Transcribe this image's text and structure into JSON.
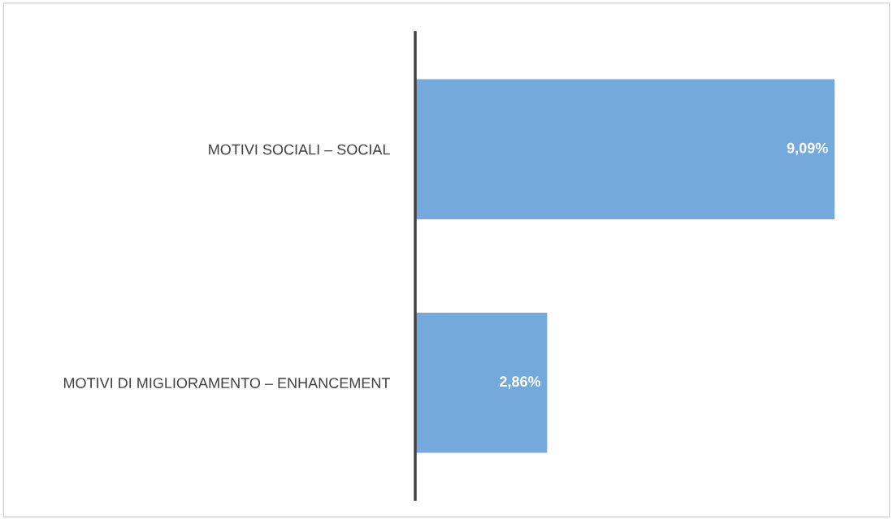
{
  "chart_data": {
    "type": "bar",
    "orientation": "horizontal",
    "categories": [
      "MOTIVI SOCIALI – SOCIAL",
      "MOTIVI DI MIGLIORAMENTO – ENHANCEMENT"
    ],
    "values": [
      9.09,
      2.86
    ],
    "value_labels": [
      "9,09%",
      "2,86%"
    ],
    "color": "#74a9db",
    "grid": false,
    "legend": false,
    "tick_labels": "y"
  }
}
